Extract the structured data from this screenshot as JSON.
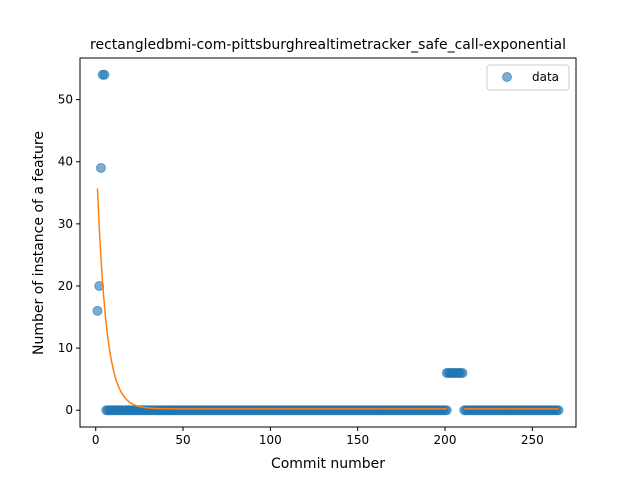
{
  "chart_data": {
    "type": "scatter",
    "title": "rectangledbmi-com-pittsburghrealtimetracker_safe_call-exponential",
    "xlabel": "Commit number",
    "ylabel": "Number of instance of a feature",
    "xlim": [
      -9,
      275
    ],
    "ylim": [
      -2.7,
      56.7
    ],
    "xticks": [
      0,
      50,
      100,
      150,
      200,
      250
    ],
    "yticks": [
      0,
      10,
      20,
      30,
      40,
      50
    ],
    "grid": false,
    "legend_position": "top-right",
    "series": [
      {
        "name": "data",
        "kind": "scatter",
        "color": "#1f77b4",
        "alpha": 0.6,
        "segments": [
          {
            "points": [
              [
                1,
                16
              ],
              [
                2,
                20
              ],
              [
                3,
                39
              ],
              [
                4,
                54
              ],
              [
                5,
                54
              ]
            ]
          },
          {
            "x_range": [
              6,
              201
            ],
            "y": 0
          },
          {
            "x_range": [
              201,
              210
            ],
            "y": 6
          },
          {
            "x_range": [
              211,
              265
            ],
            "y": 0
          }
        ]
      },
      {
        "name": "",
        "kind": "line",
        "color": "#ff7f0e",
        "model": "exponential",
        "a": 35.5,
        "b": 0.19,
        "c": 0.22,
        "x_range": [
          1,
          265
        ],
        "gap": [
          201,
          210
        ]
      }
    ]
  }
}
